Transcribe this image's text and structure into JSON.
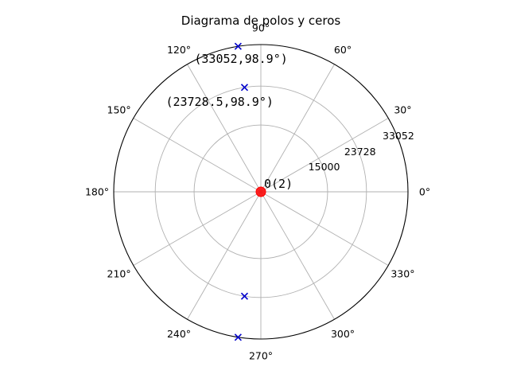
{
  "chart_data": {
    "type": "scatter",
    "projection": "polar",
    "title": "Diagrama de polos y ceros",
    "theta_ticks": [
      0,
      30,
      60,
      90,
      120,
      150,
      180,
      210,
      240,
      270,
      300,
      330
    ],
    "theta_tick_labels": [
      "0°",
      "30°",
      "60°",
      "90°",
      "120°",
      "150°",
      "180°",
      "210°",
      "240°",
      "270°",
      "300°",
      "330°"
    ],
    "r_ticks": [
      15000,
      23728,
      33052
    ],
    "r_tick_labels": [
      "15000",
      "23728",
      "33052"
    ],
    "rlim": [
      0,
      33052
    ],
    "grid": true,
    "series": [
      {
        "marker": "x",
        "color": "#0000cc",
        "points": [
          {
            "r": 33052,
            "theta": 98.9
          },
          {
            "r": 23728.5,
            "theta": 98.9
          },
          {
            "r": 23728.5,
            "theta": 261.1
          },
          {
            "r": 33052,
            "theta": 261.1
          }
        ]
      },
      {
        "marker": "o",
        "color": "#ff0000",
        "points": [
          {
            "r": 0,
            "theta": 0
          }
        ]
      }
    ],
    "annotations": [
      {
        "text": "(33052,98.9°)",
        "r": 33052,
        "theta": 98.9
      },
      {
        "text": "(23728.5,98.9°)",
        "r": 23728.5,
        "theta": 98.9
      },
      {
        "text": "0(2)",
        "r": 0,
        "theta": 0
      }
    ]
  }
}
